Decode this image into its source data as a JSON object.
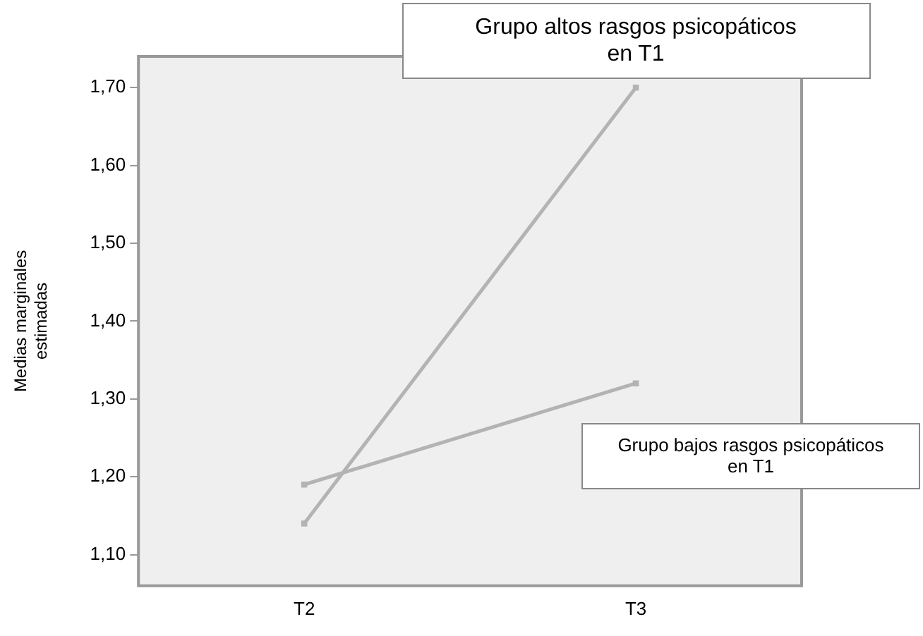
{
  "chart_data": {
    "type": "line",
    "ylabel": "Medias marginales estimadas",
    "categories": [
      "T2",
      "T3"
    ],
    "series": [
      {
        "name": "Grupo altos rasgos psicopáticos en T1",
        "color": "#b3b3b3",
        "values": [
          1.14,
          1.7
        ]
      },
      {
        "name": "Grupo bajos rasgos psicopáticos en T1",
        "color": "#b3b3b3",
        "values": [
          1.19,
          1.32
        ]
      }
    ],
    "ylim": [
      1.06,
      1.74
    ],
    "yticks": [
      {
        "value": 1.1,
        "label": "1,10"
      },
      {
        "value": 1.2,
        "label": "1,20"
      },
      {
        "value": 1.3,
        "label": "1,30"
      },
      {
        "value": 1.4,
        "label": "1,40"
      },
      {
        "value": 1.5,
        "label": "1,50"
      },
      {
        "value": 1.6,
        "label": "1,60"
      },
      {
        "value": 1.7,
        "label": "1,70"
      }
    ],
    "grid": false,
    "legend": false,
    "marker": "square",
    "line_style": "solid"
  }
}
